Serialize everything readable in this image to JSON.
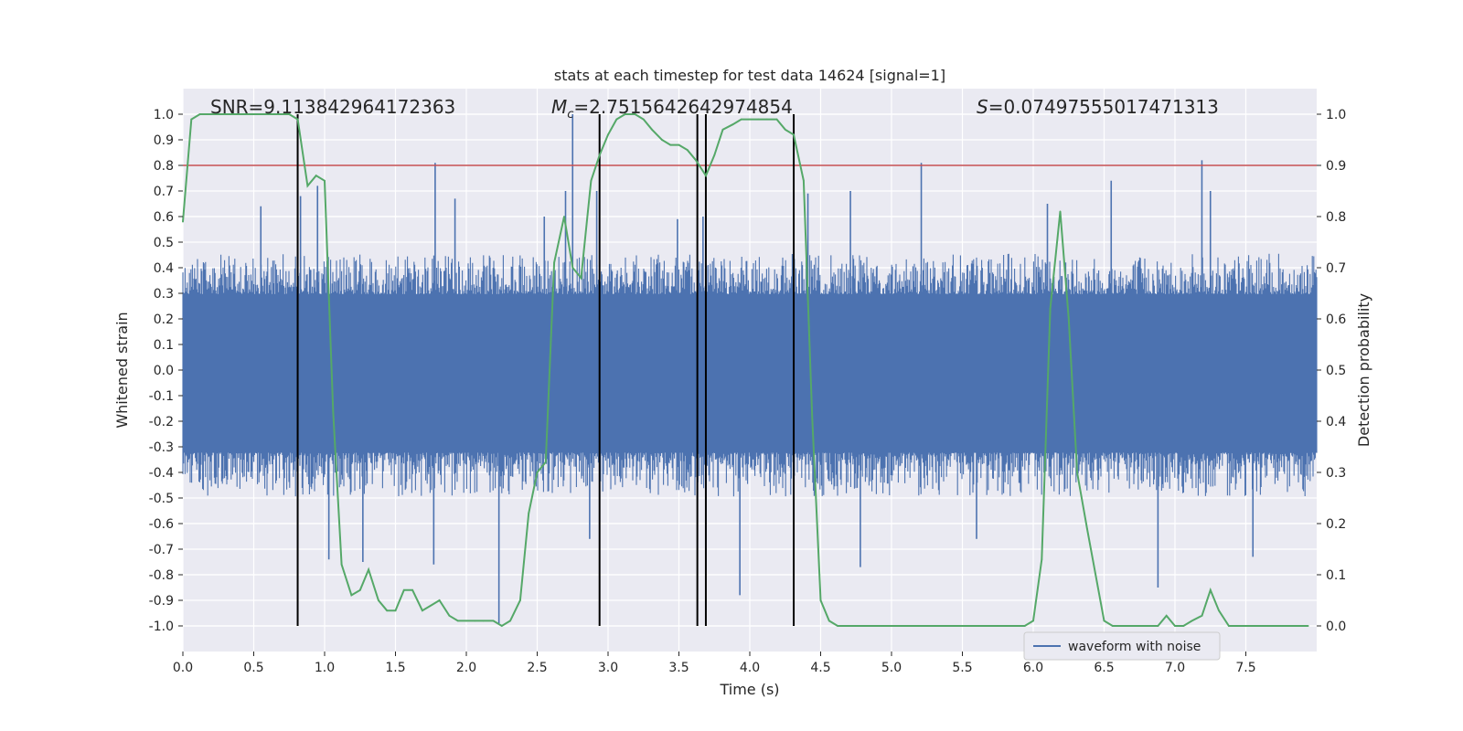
{
  "chart_data": {
    "type": "line",
    "title": "stats at each timestep for test data 14624 [signal=1]",
    "xlabel": "Time (s)",
    "ylabel_left": "Whitened strain",
    "ylabel_right": "Detection probability",
    "xlim": [
      0.0,
      8.0
    ],
    "ylim_left": [
      -1.1,
      1.1
    ],
    "ylim_right": [
      -0.05,
      1.05
    ],
    "x_ticks": [
      "0.0",
      "0.5",
      "1.0",
      "1.5",
      "2.0",
      "2.5",
      "3.0",
      "3.5",
      "4.0",
      "4.5",
      "5.0",
      "5.5",
      "6.0",
      "6.5",
      "7.0",
      "7.5"
    ],
    "y_left_ticks": [
      "1.0",
      "0.9",
      "0.8",
      "0.7",
      "0.6",
      "0.5",
      "0.4",
      "0.3",
      "0.2",
      "0.1",
      "0.0",
      "-0.1",
      "-0.2",
      "-0.3",
      "-0.4",
      "-0.5",
      "-0.6",
      "-0.7",
      "-0.8",
      "-0.9",
      "-1.0"
    ],
    "y_right_ticks": [
      "1.0",
      "0.9",
      "0.8",
      "0.7",
      "0.6",
      "0.5",
      "0.4",
      "0.3",
      "0.2",
      "0.1",
      "0.0"
    ],
    "grid": true,
    "legend": {
      "placement": "lower-right",
      "entries": [
        "waveform with noise"
      ]
    },
    "annotations": {
      "snr": "SNR=9.113842964172363",
      "mc_symbol": "M",
      "mc_sub": "c",
      "mc_value": "=2.7515642642974854",
      "s_symbol": "S",
      "s_value": "=0.07497555017471313"
    },
    "threshold": {
      "axis": "right",
      "value": 0.9,
      "color": "#c44e52"
    },
    "vertical_markers_x": [
      0.81,
      2.94,
      3.63,
      3.69,
      4.31
    ],
    "waveform": {
      "name": "waveform with noise",
      "color": "#4c72b0",
      "typical_upper": 0.35,
      "typical_lower": -0.38,
      "spikes": [
        {
          "x": 0.55,
          "y": 0.64
        },
        {
          "x": 0.83,
          "y": 0.68
        },
        {
          "x": 0.95,
          "y": 0.72
        },
        {
          "x": 1.03,
          "y": -0.74
        },
        {
          "x": 1.27,
          "y": -0.75
        },
        {
          "x": 1.78,
          "y": 0.81
        },
        {
          "x": 1.77,
          "y": -0.76
        },
        {
          "x": 1.92,
          "y": 0.67
        },
        {
          "x": 2.23,
          "y": -0.99
        },
        {
          "x": 2.55,
          "y": 0.6
        },
        {
          "x": 2.7,
          "y": 0.7
        },
        {
          "x": 2.75,
          "y": 1.0
        },
        {
          "x": 2.87,
          "y": -0.66
        },
        {
          "x": 2.92,
          "y": 0.7
        },
        {
          "x": 3.49,
          "y": 0.59
        },
        {
          "x": 3.67,
          "y": 0.6
        },
        {
          "x": 3.69,
          "y": -0.78
        },
        {
          "x": 3.93,
          "y": -0.88
        },
        {
          "x": 4.41,
          "y": 0.69
        },
        {
          "x": 4.71,
          "y": 0.7
        },
        {
          "x": 4.78,
          "y": -0.77
        },
        {
          "x": 5.21,
          "y": 0.81
        },
        {
          "x": 5.6,
          "y": -0.66
        },
        {
          "x": 6.1,
          "y": 0.65
        },
        {
          "x": 6.55,
          "y": 0.74
        },
        {
          "x": 6.88,
          "y": -0.85
        },
        {
          "x": 7.19,
          "y": 0.82
        },
        {
          "x": 7.25,
          "y": 0.7
        },
        {
          "x": 7.55,
          "y": -0.73
        }
      ]
    },
    "series": [
      {
        "name": "Detection probability",
        "axis": "right",
        "color": "#55a868",
        "x": [
          0.0,
          0.06,
          0.12,
          0.19,
          0.25,
          0.31,
          0.38,
          0.44,
          0.5,
          0.56,
          0.62,
          0.69,
          0.75,
          0.81,
          0.88,
          0.94,
          1.0,
          1.06,
          1.12,
          1.19,
          1.25,
          1.31,
          1.38,
          1.44,
          1.5,
          1.56,
          1.62,
          1.69,
          1.75,
          1.81,
          1.88,
          1.94,
          2.0,
          2.06,
          2.12,
          2.19,
          2.25,
          2.31,
          2.38,
          2.44,
          2.5,
          2.56,
          2.62,
          2.69,
          2.75,
          2.81,
          2.88,
          2.94,
          3.0,
          3.06,
          3.12,
          3.19,
          3.25,
          3.31,
          3.38,
          3.44,
          3.5,
          3.56,
          3.62,
          3.69,
          3.75,
          3.81,
          3.88,
          3.94,
          4.0,
          4.06,
          4.12,
          4.19,
          4.25,
          4.31,
          4.38,
          4.44,
          4.5,
          4.56,
          4.62,
          4.69,
          4.75,
          4.81,
          4.88,
          4.94,
          5.0,
          5.06,
          5.12,
          5.19,
          5.25,
          5.31,
          5.38,
          5.44,
          5.5,
          5.56,
          5.62,
          5.69,
          5.75,
          5.81,
          5.88,
          5.94,
          6.0,
          6.06,
          6.12,
          6.19,
          6.25,
          6.31,
          6.38,
          6.44,
          6.5,
          6.56,
          6.62,
          6.69,
          6.75,
          6.81,
          6.88,
          6.94,
          7.0,
          7.06,
          7.12,
          7.19,
          7.25,
          7.31,
          7.38,
          7.44,
          7.5,
          7.56,
          7.62,
          7.69,
          7.75,
          7.81,
          7.88,
          7.94
        ],
        "values": [
          0.79,
          0.99,
          1.0,
          1.0,
          1.0,
          1.0,
          1.0,
          1.0,
          1.0,
          1.0,
          1.0,
          1.0,
          1.0,
          0.99,
          0.86,
          0.88,
          0.87,
          0.42,
          0.12,
          0.06,
          0.07,
          0.11,
          0.05,
          0.03,
          0.03,
          0.07,
          0.07,
          0.03,
          0.04,
          0.05,
          0.02,
          0.01,
          0.01,
          0.01,
          0.01,
          0.01,
          0.0,
          0.01,
          0.05,
          0.22,
          0.3,
          0.32,
          0.71,
          0.8,
          0.7,
          0.68,
          0.87,
          0.92,
          0.96,
          0.99,
          1.0,
          1.0,
          0.99,
          0.97,
          0.95,
          0.94,
          0.94,
          0.93,
          0.91,
          0.88,
          0.92,
          0.97,
          0.98,
          0.99,
          0.99,
          0.99,
          0.99,
          0.99,
          0.97,
          0.96,
          0.87,
          0.41,
          0.05,
          0.01,
          0.0,
          0.0,
          0.0,
          0.0,
          0.0,
          0.0,
          0.0,
          0.0,
          0.0,
          0.0,
          0.0,
          0.0,
          0.0,
          0.0,
          0.0,
          0.0,
          0.0,
          0.0,
          0.0,
          0.0,
          0.0,
          0.0,
          0.01,
          0.13,
          0.62,
          0.81,
          0.6,
          0.3,
          0.19,
          0.1,
          0.01,
          0.0,
          0.0,
          0.0,
          0.0,
          0.0,
          0.0,
          0.02,
          0.0,
          0.0,
          0.01,
          0.02,
          0.07,
          0.03,
          0.0,
          0.0,
          0.0,
          0.0,
          0.0,
          0.0,
          0.0,
          0.0,
          0.0,
          0.0
        ]
      }
    ]
  }
}
